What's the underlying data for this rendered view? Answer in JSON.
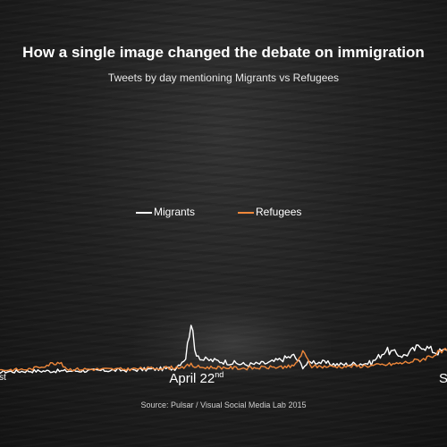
{
  "title": "How a single image changed the debate on immigration",
  "subtitle": "Tweets by day mentioning Migrants vs Refugees",
  "source": "Source: Pulsar / Visual Social Media Lab 2015",
  "colors": {
    "migrants": "#ffffff",
    "refugees": "#f0883a"
  },
  "chart_data": {
    "type": "line",
    "series": [
      {
        "name": "Migrants",
        "color": "#ffffff"
      },
      {
        "name": "Refugees",
        "color": "#f0883a"
      }
    ],
    "xlim": [
      "2015-01-01",
      "2015-09-08"
    ],
    "x_ticks": [
      {
        "date": "2015-01-01",
        "text": "st",
        "sup": ""
      },
      {
        "date": "2015-04-22",
        "text": "April 22",
        "sup": "nd"
      },
      {
        "date": "2015-09-02",
        "text": "S",
        "sup": ""
      }
    ],
    "y_axis": {
      "shown": false,
      "relative_min": 0,
      "relative_max": 100
    },
    "grid": false,
    "legend_position": "center",
    "migrants_baseline": 4,
    "refugees_baseline": 6,
    "points": [
      {
        "date": "2015-01-01",
        "migrants": 4,
        "refugees": 6
      },
      {
        "date": "2015-01-20",
        "migrants": 5,
        "refugees": 7
      },
      {
        "date": "2015-02-04",
        "migrants": 5,
        "refugees": 15
      },
      {
        "date": "2015-02-10",
        "migrants": 5,
        "refugees": 7
      },
      {
        "date": "2015-03-15",
        "migrants": 6,
        "refugees": 7
      },
      {
        "date": "2015-04-10",
        "migrants": 8,
        "refugees": 9
      },
      {
        "date": "2015-04-16",
        "migrants": 20,
        "refugees": 10
      },
      {
        "date": "2015-04-19",
        "migrants": 62,
        "refugees": 12
      },
      {
        "date": "2015-04-21",
        "migrants": 28,
        "refugees": 10
      },
      {
        "date": "2015-04-25",
        "migrants": 18,
        "refugees": 9
      },
      {
        "date": "2015-05-05",
        "migrants": 16,
        "refugees": 9
      },
      {
        "date": "2015-05-20",
        "migrants": 12,
        "refugees": 8
      },
      {
        "date": "2015-06-01",
        "migrants": 14,
        "refugees": 9
      },
      {
        "date": "2015-06-15",
        "migrants": 22,
        "refugees": 10
      },
      {
        "date": "2015-06-20",
        "migrants": 10,
        "refugees": 26
      },
      {
        "date": "2015-06-25",
        "migrants": 16,
        "refugees": 10
      },
      {
        "date": "2015-07-10",
        "migrants": 12,
        "refugees": 10
      },
      {
        "date": "2015-07-28",
        "migrants": 14,
        "refugees": 11
      },
      {
        "date": "2015-08-05",
        "migrants": 28,
        "refugees": 12
      },
      {
        "date": "2015-08-15",
        "migrants": 22,
        "refugees": 14
      },
      {
        "date": "2015-08-25",
        "migrants": 34,
        "refugees": 18
      },
      {
        "date": "2015-09-02",
        "migrants": 26,
        "refugees": 24
      },
      {
        "date": "2015-09-08",
        "migrants": 28,
        "refugees": 28
      }
    ]
  }
}
